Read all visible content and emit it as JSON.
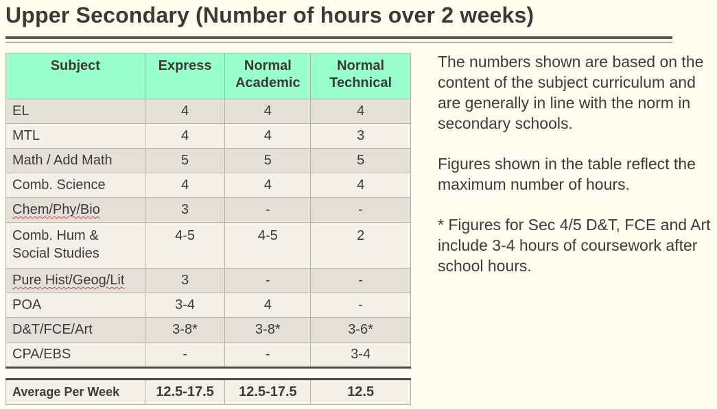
{
  "title": "Upper Secondary (Number of hours over 2 weeks)",
  "table": {
    "headers": [
      "Subject",
      "Express",
      "Normal Academic",
      "Normal Technical"
    ],
    "header_lines": {
      "express": "Express",
      "na_line1": "Normal",
      "na_line2": "Academic",
      "nt_line1": "Normal",
      "nt_line2": "Technical"
    },
    "rows": [
      {
        "subject": "EL",
        "express": "4",
        "na": "4",
        "nt": "4"
      },
      {
        "subject": "MTL",
        "express": "4",
        "na": "4",
        "nt": "3"
      },
      {
        "subject": "Math / Add Math",
        "express": "5",
        "na": "5",
        "nt": "5"
      },
      {
        "subject": "Comb. Science",
        "express": "4",
        "na": "4",
        "nt": "4"
      },
      {
        "subject": "Chem/Phy/Bio",
        "express": "3",
        "na": "-",
        "nt": "-"
      },
      {
        "subject": "Comb. Hum & Social Studies",
        "subject_line1": "Comb. Hum &",
        "subject_line2": "Social Studies",
        "express": "4-5",
        "na": "4-5",
        "nt": "2"
      },
      {
        "subject": "Pure Hist/Geog/Lit",
        "express": "3",
        "na": "-",
        "nt": "-"
      },
      {
        "subject": "POA",
        "express": "3-4",
        "na": "4",
        "nt": "-"
      },
      {
        "subject": "D&T/FCE/Art",
        "express": "3-8*",
        "na": "3-8*",
        "nt": "3-6*"
      },
      {
        "subject": "CPA/EBS",
        "express": "-",
        "na": "-",
        "nt": "3-4"
      }
    ],
    "average": {
      "label": "Average Per Week",
      "express": "12.5-17.5",
      "na": "12.5-17.5",
      "nt": "12.5"
    }
  },
  "notes": [
    "The numbers shown are based on the content of the subject curriculum and are generally in line with the norm in secondary schools.",
    "Figures shown in the table reflect the maximum number of hours.",
    "* Figures for Sec 4/5 D&T, FCE and Art include 3-4 hours of coursework after school hours."
  ],
  "colors": {
    "header_bg": "#99ffcc",
    "row_odd": "#e4e0d9",
    "row_even": "#f3f0ea",
    "page_bg": "#fffdf0"
  }
}
